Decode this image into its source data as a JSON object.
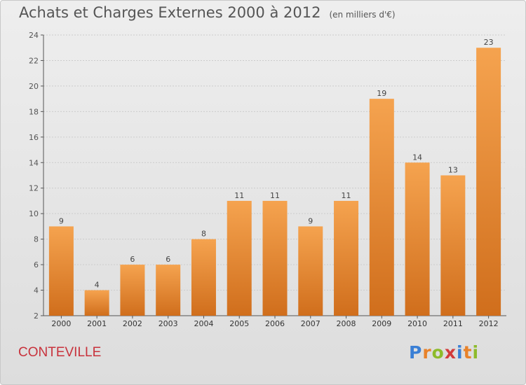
{
  "title": "Achats et Charges Externes 2000 à 2012",
  "subtitle": "(en milliers d'€)",
  "commune": "CONTEVILLE",
  "logo": {
    "letters": [
      "P",
      "r",
      "o",
      "x",
      "i",
      "t",
      "i"
    ]
  },
  "colors": {
    "bar": "#e8822a",
    "bar_light": "#f5a34f",
    "bar_dark": "#d06e1c",
    "axis": "#555555",
    "grid": "#cccccc",
    "commune": "#c8323c"
  },
  "chart_data": {
    "type": "bar",
    "categories": [
      "2000",
      "2001",
      "2002",
      "2003",
      "2004",
      "2005",
      "2006",
      "2007",
      "2008",
      "2009",
      "2010",
      "2011",
      "2012"
    ],
    "values": [
      9,
      4,
      6,
      6,
      8,
      11,
      11,
      9,
      11,
      19,
      14,
      13,
      23
    ],
    "data_labels": [
      "9",
      "4",
      "6",
      "6",
      "8",
      "11",
      "11",
      "9",
      "11",
      "19",
      "14",
      "13",
      "23"
    ],
    "ylim": [
      2,
      24
    ],
    "yticks": [
      2,
      4,
      6,
      8,
      10,
      12,
      14,
      16,
      18,
      20,
      22,
      24
    ],
    "ytick_labels": [
      "2",
      "4",
      "6",
      "8",
      "10",
      "12",
      "14",
      "16",
      "18",
      "20",
      "22",
      "24"
    ],
    "grid": true,
    "xlabel": "",
    "ylabel": ""
  }
}
